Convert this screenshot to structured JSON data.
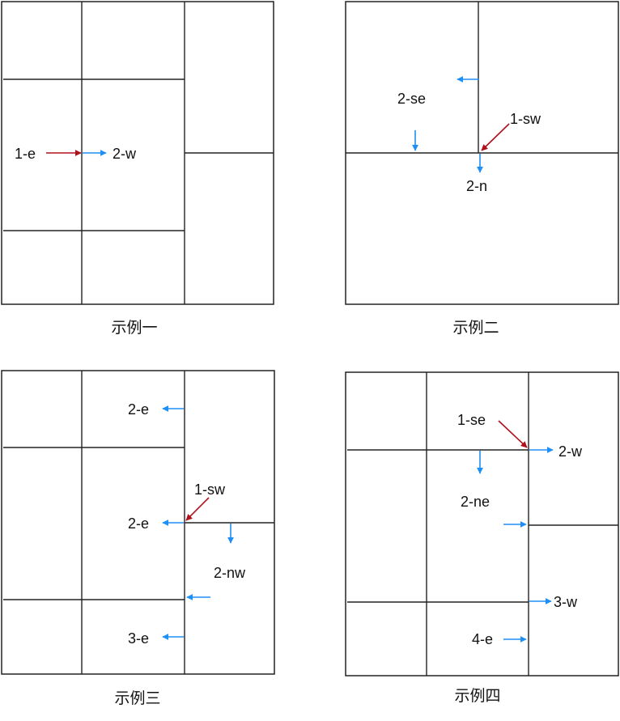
{
  "colors": {
    "line": "#222222",
    "blue_arrow": "#1e90f5",
    "red_arrow": "#b0101c",
    "background": "#ffffff"
  },
  "examples": [
    {
      "caption": "示例一",
      "labels": [
        "1-e",
        "2-w"
      ]
    },
    {
      "caption": "示例二",
      "labels": [
        "2-se",
        "1-sw",
        "2-n"
      ]
    },
    {
      "caption": "示例三",
      "labels": [
        "2-e",
        "1-sw",
        "2-e",
        "2-nw",
        "3-e"
      ]
    },
    {
      "caption": "示例四",
      "labels": [
        "1-se",
        "2-w",
        "2-ne",
        "3-w",
        "4-e"
      ]
    }
  ]
}
